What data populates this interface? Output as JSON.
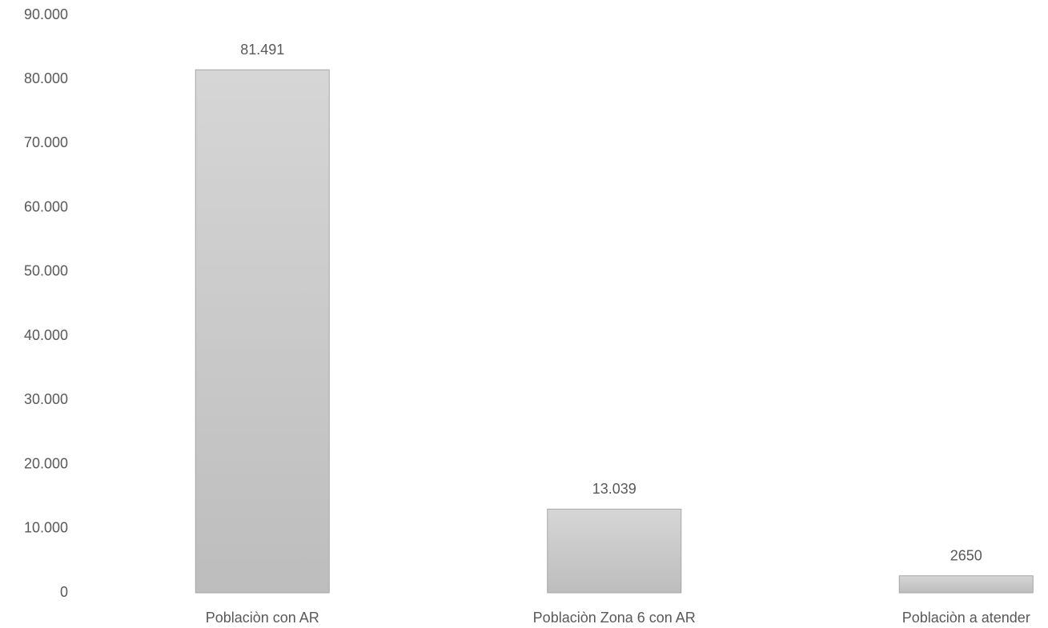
{
  "chart_data": {
    "type": "bar",
    "categories": [
      "Poblaciòn con AR",
      "Poblaciòn Zona 6 con AR",
      "Poblaciòn a atender"
    ],
    "values": [
      81491,
      13039,
      2650
    ],
    "value_labels": [
      "81.491",
      "13.039",
      "2650"
    ],
    "ylim": [
      0,
      90000
    ],
    "yticks": [
      0,
      {
        "value": 10000,
        "label": "10.000"
      },
      {
        "value": 20000,
        "label": "20.000"
      },
      {
        "value": 30000,
        "label": "30.000"
      },
      {
        "value": 40000,
        "label": "40.000"
      },
      {
        "value": 50000,
        "label": "50.000"
      },
      {
        "value": 60000,
        "label": "60.000"
      },
      {
        "value": 70000,
        "label": "70.000"
      },
      {
        "value": 80000,
        "label": "80.000"
      },
      {
        "value": 90000,
        "label": "90.000"
      }
    ],
    "color": "#c8c8c8",
    "grid": false
  }
}
